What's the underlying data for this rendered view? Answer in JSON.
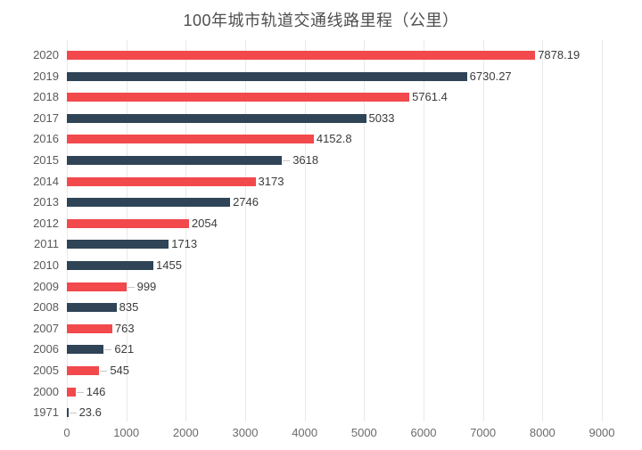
{
  "title": "100年城市轨道交通线路里程（公里）",
  "colors": {
    "red": "#f2494c",
    "navy": "#2f4456",
    "grid": "#e9e9e9",
    "leader": "#c6c6c6",
    "title_text": "#4e4e4e",
    "axis_text": "#6b6b6b",
    "year_text": "#5a5a5a",
    "value_text": "#3b3b3b",
    "background": "#ffffff"
  },
  "chart_data": {
    "type": "bar",
    "orientation": "horizontal",
    "title": "100年城市轨道交通线路里程（公里）",
    "xlabel": "",
    "ylabel": "",
    "categories": [
      "2020",
      "2019",
      "2018",
      "2017",
      "2016",
      "2015",
      "2014",
      "2013",
      "2012",
      "2011",
      "2010",
      "2009",
      "2008",
      "2007",
      "2006",
      "2005",
      "2000",
      "1971"
    ],
    "values": [
      7878.19,
      6730.27,
      5761.4,
      5033,
      4152.8,
      3618,
      3173,
      2746,
      2054,
      1713,
      1455,
      999,
      835,
      763,
      621,
      545,
      146,
      23.6
    ],
    "value_labels": [
      "7878.19",
      "6730.27",
      "5761.4",
      "5033",
      "4152.8",
      "3618",
      "3173",
      "2746",
      "2054",
      "1713",
      "1455",
      "999",
      "835",
      "763",
      "621",
      "545",
      "146",
      "23.6"
    ],
    "bar_colors": [
      "red",
      "navy",
      "red",
      "navy",
      "red",
      "navy",
      "red",
      "navy",
      "red",
      "navy",
      "navy",
      "red",
      "navy",
      "red",
      "navy",
      "red",
      "red",
      "navy"
    ],
    "leader_rows": [
      false,
      false,
      false,
      false,
      false,
      true,
      false,
      false,
      false,
      false,
      false,
      true,
      false,
      false,
      true,
      true,
      true,
      true
    ],
    "xlim": [
      0,
      9000
    ],
    "x_ticks": [
      0,
      1000,
      2000,
      3000,
      4000,
      5000,
      6000,
      7000,
      8000,
      9000
    ],
    "grid": true,
    "legend": null
  }
}
